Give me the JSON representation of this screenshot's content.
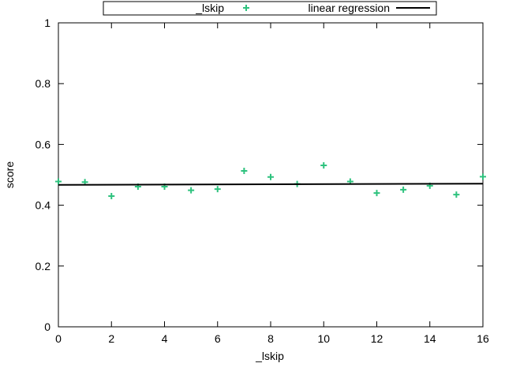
{
  "chart_data": {
    "type": "scatter",
    "xlabel": "_lskip",
    "ylabel": "score",
    "xlim": [
      0,
      16
    ],
    "ylim": [
      0,
      1
    ],
    "x_ticks": [
      0,
      2,
      4,
      6,
      8,
      10,
      12,
      14,
      16
    ],
    "x_tick_labels": [
      "0",
      "2",
      "4",
      "6",
      "8",
      "10",
      "12",
      "14",
      "16"
    ],
    "y_ticks": [
      0,
      0.2,
      0.4,
      0.6,
      0.8,
      1
    ],
    "y_tick_labels": [
      "0",
      "0.2",
      "0.4",
      "0.6",
      "0.8",
      "1"
    ],
    "grid": false,
    "legend_position": "top-center",
    "series": [
      {
        "name": "_lskip",
        "kind": "points",
        "marker": "plus",
        "color": "#2ec27e",
        "x": [
          0,
          1,
          2,
          3,
          4,
          5,
          6,
          7,
          8,
          9,
          10,
          11,
          12,
          13,
          14,
          15,
          16
        ],
        "y": [
          0.478,
          0.476,
          0.43,
          0.461,
          0.461,
          0.449,
          0.453,
          0.513,
          0.493,
          0.47,
          0.531,
          0.478,
          0.44,
          0.451,
          0.464,
          0.435,
          0.494
        ]
      },
      {
        "name": "linear regression",
        "kind": "line",
        "color": "#000000",
        "x": [
          0,
          16
        ],
        "y": [
          0.467,
          0.471
        ]
      }
    ]
  }
}
